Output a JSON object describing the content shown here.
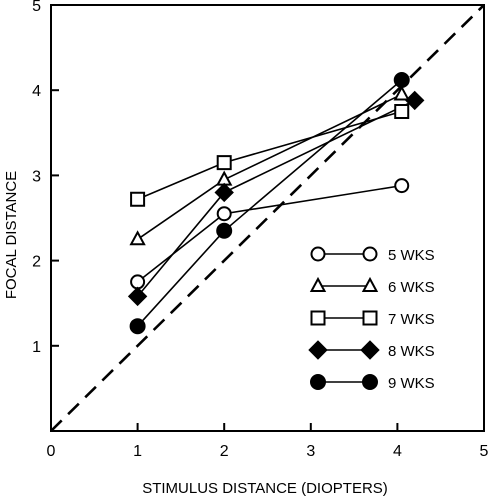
{
  "chart_data": {
    "type": "line",
    "title": "",
    "xlabel": "STIMULUS DISTANCE (DIOPTERS)",
    "ylabel": "FOCAL DISTANCE",
    "xlim": [
      0,
      5
    ],
    "ylim": [
      0,
      5
    ],
    "x_ticks": [
      "0",
      "1",
      "2",
      "3",
      "4",
      "5"
    ],
    "y_ticks": [
      "1",
      "2",
      "3",
      "4",
      "5"
    ],
    "grid": false,
    "legend_position": "bottom-right",
    "reference_line": {
      "style": "dashed",
      "from": [
        0,
        0
      ],
      "to": [
        5,
        5
      ]
    },
    "series": [
      {
        "name": "5 WKS",
        "marker": "circle-open",
        "points": [
          [
            1.0,
            1.75
          ],
          [
            2.0,
            2.55
          ],
          [
            4.05,
            2.88
          ]
        ]
      },
      {
        "name": "6 WKS",
        "marker": "triangle-open",
        "points": [
          [
            1.0,
            2.25
          ],
          [
            2.0,
            2.95
          ],
          [
            4.05,
            3.95
          ]
        ]
      },
      {
        "name": "7 WKS",
        "marker": "square-open",
        "points": [
          [
            1.0,
            2.72
          ],
          [
            2.0,
            3.15
          ],
          [
            4.05,
            3.75
          ]
        ]
      },
      {
        "name": "8 WKS",
        "marker": "diamond-filled",
        "points": [
          [
            1.0,
            1.58
          ],
          [
            2.0,
            2.8
          ],
          [
            4.2,
            3.88
          ]
        ]
      },
      {
        "name": "9 WKS",
        "marker": "circle-filled",
        "points": [
          [
            1.0,
            1.23
          ],
          [
            2.0,
            2.35
          ],
          [
            4.05,
            4.12
          ]
        ]
      }
    ]
  }
}
